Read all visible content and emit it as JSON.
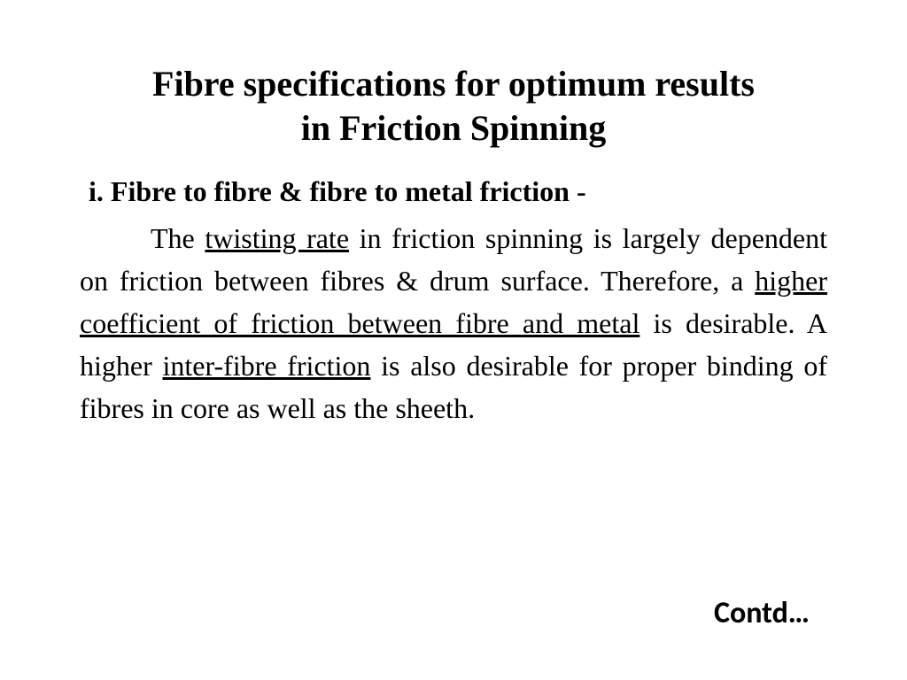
{
  "title_line1": "Fibre specifications for optimum results",
  "title_line2": "in Friction Spinning",
  "subheading": "i. Fibre to fibre & fibre to metal friction -",
  "body": {
    "p1_a": "The ",
    "p1_u1": "twisting rate",
    "p1_b": " in friction spinning is largely dependent on friction between fibres & drum surface. Therefore, a ",
    "p1_u2": "higher coefficient of friction between fibre and metal",
    "p1_c": " is desirable. A higher ",
    "p1_u3": "inter-fibre friction",
    "p1_d": " is also desirable for proper binding of fibres in core as well as the sheeth."
  },
  "contd": "Contd…",
  "style": {
    "background_color": "#ffffff",
    "text_color": "#000000",
    "title_fontsize_pt": 30,
    "subheading_fontsize_pt": 24,
    "body_fontsize_pt": 24,
    "contd_fontsize_pt": 26,
    "body_font": "Times New Roman",
    "contd_font": "Calibri"
  }
}
